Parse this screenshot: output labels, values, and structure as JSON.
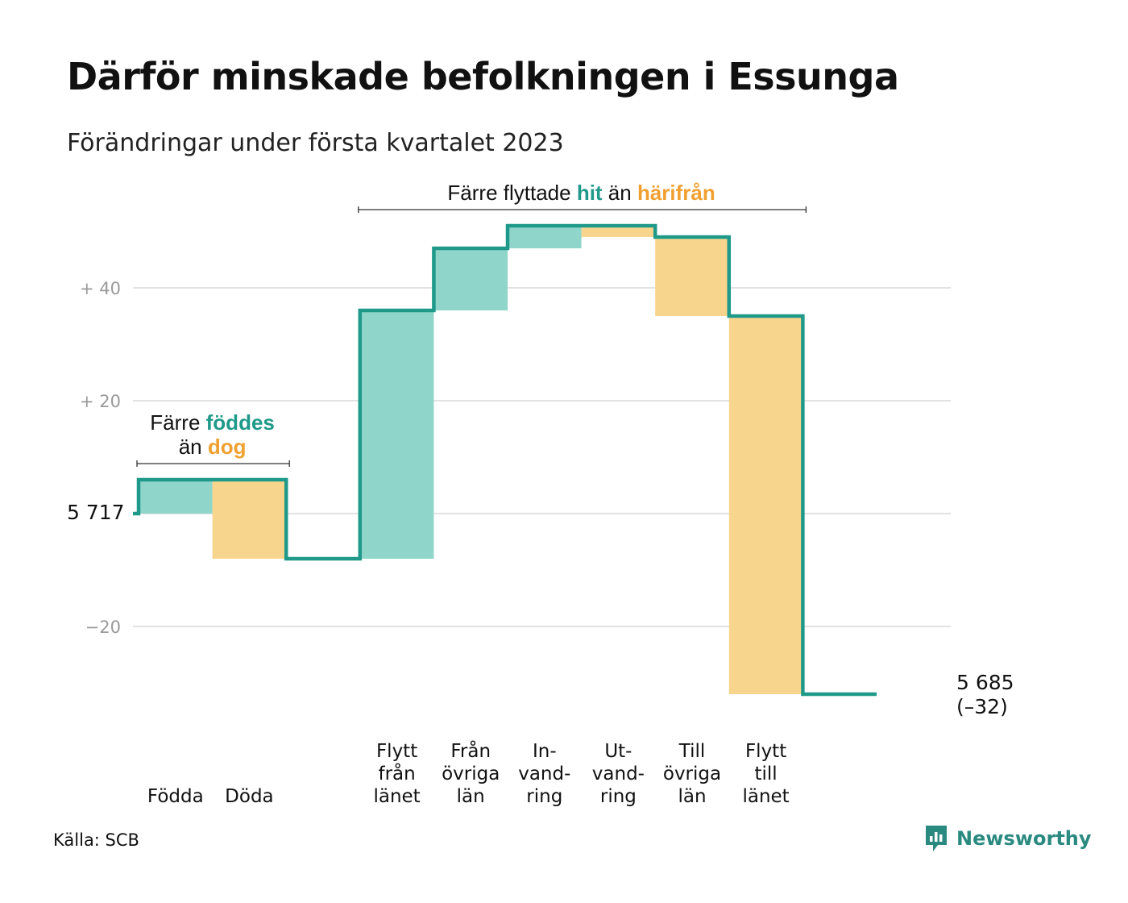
{
  "title": "Därför minskade befolkningen i Essunga",
  "subtitle": "Förändringar under första kvartalet 2023",
  "source": "Källa: SCB",
  "brand": {
    "name": "Newsworthy",
    "icon": "newsworthy-logo-icon"
  },
  "colors": {
    "in": "#8fd5ca",
    "out": "#f8d58c",
    "line": "#1f9a8a",
    "grid": "#e2e2e2",
    "in_text": "#1f9a8a",
    "out_text": "#f0a030"
  },
  "chart_data": {
    "type": "waterfall",
    "start_value": 5717,
    "start_label": "5 717",
    "end_label": "5 685",
    "end_change": "(–32)",
    "y_ticks": [
      {
        "value": 40,
        "label": "+ 40"
      },
      {
        "value": 20,
        "label": "+ 20"
      },
      {
        "value": 0,
        "label": ""
      },
      {
        "value": -20,
        "label": "−20"
      }
    ],
    "ylim": [
      -33,
      51
    ],
    "grid": true,
    "steps": [
      {
        "label": [
          "Födda"
        ],
        "change": 6,
        "kind": "in"
      },
      {
        "label": [
          "Döda"
        ],
        "change": -14,
        "kind": "out"
      },
      {
        "label": [
          ""
        ],
        "change": 0,
        "kind": "none"
      },
      {
        "label": [
          "Flytt",
          "från",
          "länet"
        ],
        "change": 44,
        "kind": "in"
      },
      {
        "label": [
          "Från",
          "övriga",
          "län"
        ],
        "change": 11,
        "kind": "in"
      },
      {
        "label": [
          "In-",
          "vand-",
          "ring"
        ],
        "change": 4,
        "kind": "in"
      },
      {
        "label": [
          "Ut-",
          "vand-",
          "ring"
        ],
        "change": -2,
        "kind": "out"
      },
      {
        "label": [
          "Till",
          "övriga",
          "län"
        ],
        "change": -14,
        "kind": "out"
      },
      {
        "label": [
          "Flytt",
          "till",
          "länet"
        ],
        "change": -67,
        "kind": "out"
      },
      {
        "label": [
          ""
        ],
        "change": 0,
        "kind": "none"
      }
    ],
    "annotations": [
      {
        "lines": [
          [
            {
              "text": "Färre ",
              "style": "plain"
            },
            {
              "text": "föddes",
              "style": "in"
            }
          ],
          [
            {
              "text": "än ",
              "style": "plain"
            },
            {
              "text": "dog",
              "style": "out"
            }
          ]
        ],
        "from_step": 0,
        "to_step": 1
      },
      {
        "lines": [
          [
            {
              "text": "Färre flyttade ",
              "style": "plain"
            },
            {
              "text": "hit",
              "style": "in"
            },
            {
              "text": " än ",
              "style": "plain"
            },
            {
              "text": "härifrån",
              "style": "out"
            }
          ]
        ],
        "from_step": 3,
        "to_step": 8
      }
    ]
  }
}
